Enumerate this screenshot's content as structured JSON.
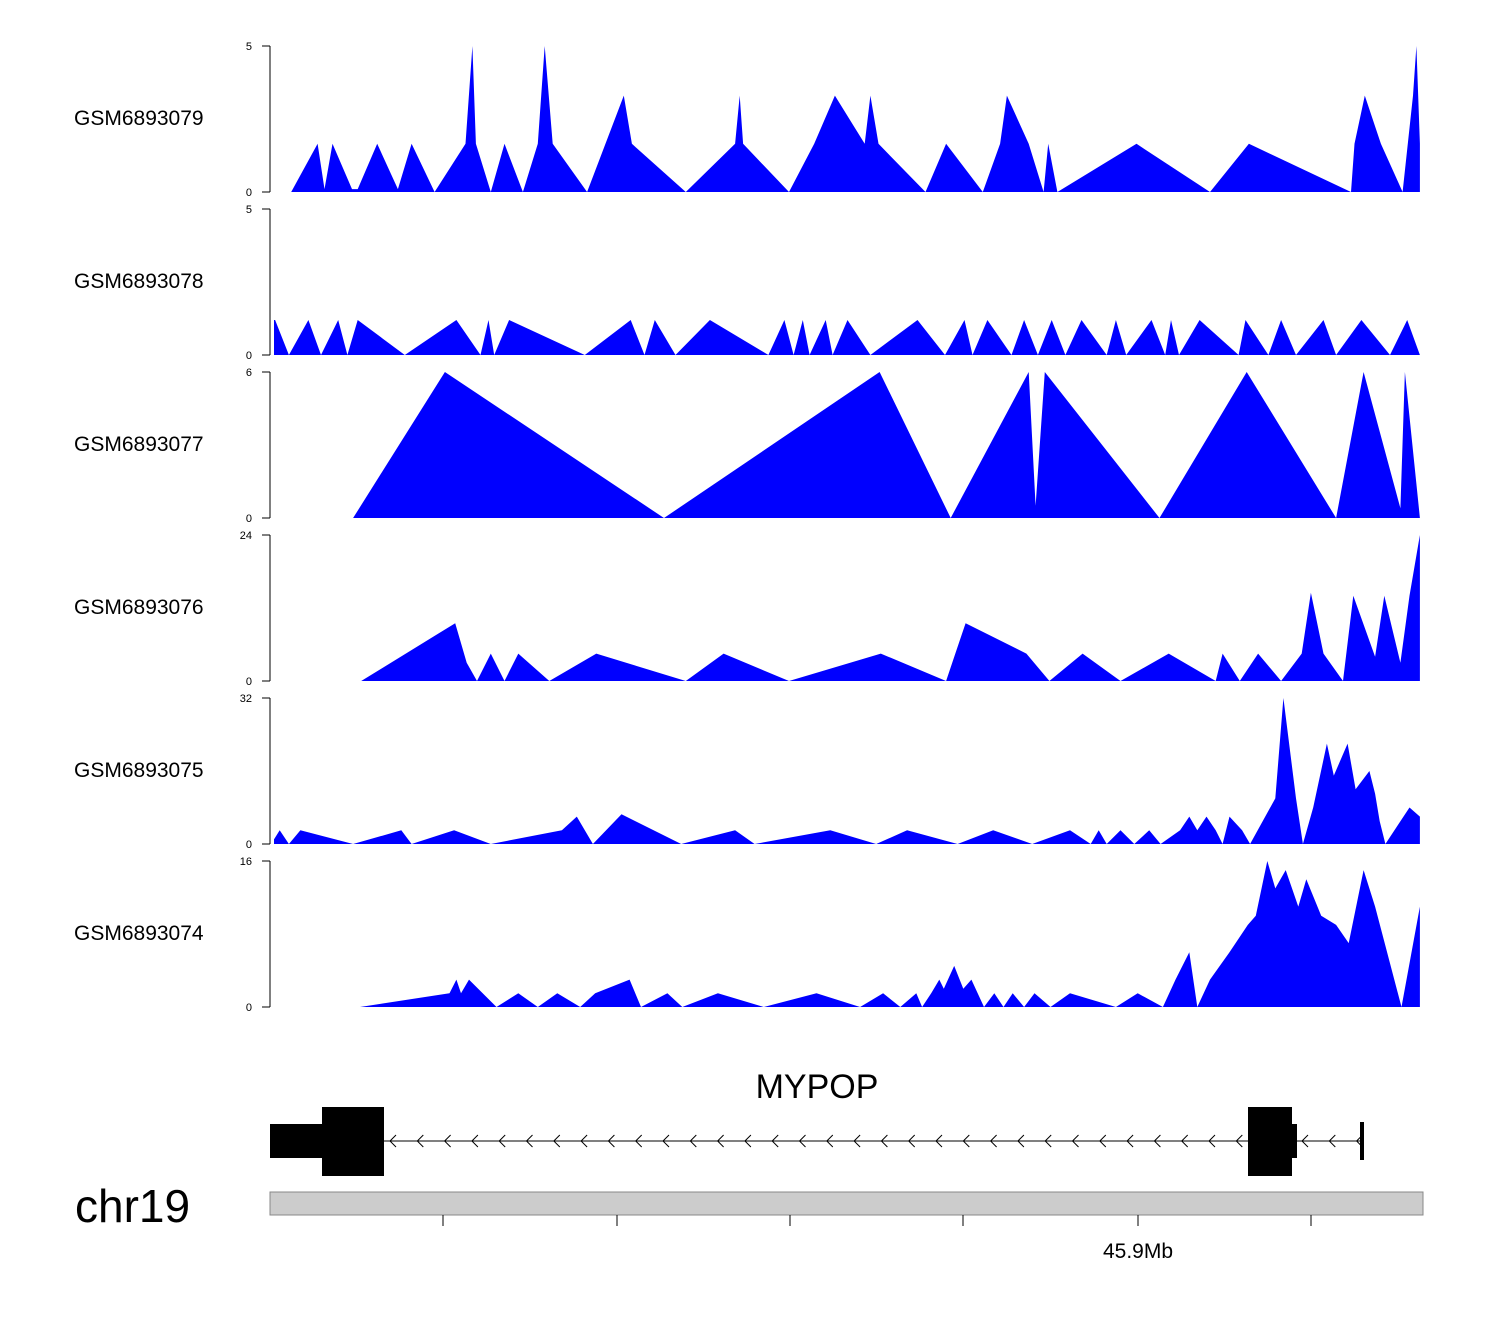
{
  "chart_data": {
    "type": "area",
    "title": "",
    "chromosome": "chr19",
    "genomic_axis": {
      "tick_label": "45.9Mb",
      "x_range": [
        0,
        100
      ]
    },
    "tracks": [
      {
        "name": "GSM6893079",
        "ylim": [
          0,
          5
        ],
        "tick_labels": [
          "5",
          "0"
        ],
        "color": "#0000ff",
        "x": [
          1.5,
          3.8,
          4.4,
          5.1,
          6.8,
          7.3,
          9.0,
          10.8,
          12.0,
          14.0,
          16.7,
          17.3,
          17.6,
          18.9,
          20.1,
          21.7,
          23.0,
          23.6,
          24.3,
          27.3,
          30.5,
          31.2,
          35.9,
          40.2,
          40.6,
          40.9,
          44.9,
          47.1,
          48.9,
          51.5,
          52.0,
          52.7,
          56.8,
          58.6,
          61.8,
          63.3,
          63.9,
          65.8,
          67.1,
          67.5,
          68.3,
          75.2,
          81.6,
          85.0,
          93.9,
          94.2,
          95.1,
          96.5,
          98.4,
          99.3,
          99.6,
          99.9
        ],
        "values": [
          0,
          1.65,
          0.1,
          1.65,
          0.1,
          0.1,
          1.65,
          0.1,
          1.65,
          0,
          1.65,
          5,
          1.65,
          0,
          1.65,
          0,
          1.65,
          5,
          1.65,
          0,
          3.3,
          1.65,
          0,
          1.65,
          3.3,
          1.65,
          0,
          1.65,
          3.3,
          1.65,
          3.3,
          1.65,
          0,
          1.65,
          0,
          1.65,
          3.3,
          1.65,
          0,
          1.65,
          0,
          1.65,
          0,
          1.65,
          0,
          1.65,
          3.3,
          1.65,
          0,
          3.3,
          5,
          1.65
        ]
      },
      {
        "name": "GSM6893078",
        "ylim": [
          0,
          5
        ],
        "tick_labels": [
          "5",
          "0"
        ],
        "color": "#0000ff",
        "x": [
          0,
          0.1,
          1.3,
          3.0,
          4.1,
          5.6,
          6.4,
          7.3,
          11.4,
          15.9,
          18.0,
          18.7,
          19.2,
          20.5,
          27.1,
          31.1,
          32.3,
          33.2,
          35.0,
          38.0,
          43.1,
          44.5,
          45.3,
          46.1,
          46.7,
          48.1,
          48.7,
          50.0,
          52.0,
          56.1,
          58.5,
          60.2,
          60.9,
          62.2,
          64.3,
          65.4,
          66.6,
          67.8,
          69.0,
          70.4,
          72.6,
          73.4,
          74.3,
          76.5,
          77.7,
          78.2,
          78.9,
          80.7,
          84.1,
          84.7,
          86.7,
          87.8,
          89.1,
          91.5,
          92.6,
          94.8,
          97.3,
          98.8,
          99.9
        ],
        "values": [
          1.2,
          1.2,
          0,
          1.2,
          0,
          1.2,
          0,
          1.2,
          0,
          1.2,
          0,
          1.2,
          0,
          1.2,
          0,
          1.2,
          0,
          1.2,
          0,
          1.2,
          0,
          1.2,
          0,
          1.2,
          0,
          1.2,
          0,
          1.2,
          0,
          1.2,
          0,
          1.2,
          0,
          1.2,
          0,
          1.2,
          0,
          1.2,
          0,
          1.2,
          0,
          1.2,
          0,
          1.2,
          0,
          1.2,
          0,
          1.2,
          0,
          1.2,
          0,
          1.2,
          0,
          1.2,
          0,
          1.2,
          0,
          1.2,
          0
        ]
      },
      {
        "name": "GSM6893077",
        "ylim": [
          0,
          6
        ],
        "tick_labels": [
          "6",
          "0"
        ],
        "color": "#0000ff",
        "x": [
          6.9,
          14.9,
          34.0,
          52.8,
          59.0,
          65.8,
          66.4,
          67.2,
          77.2,
          84.8,
          92.6,
          95.0,
          98.2,
          98.6,
          99.9
        ],
        "values": [
          0,
          6,
          0,
          6,
          0,
          6,
          0.5,
          6,
          0,
          6,
          0,
          6,
          0.4,
          6,
          0
        ]
      },
      {
        "name": "GSM6893076",
        "ylim": [
          0,
          24
        ],
        "tick_labels": [
          "24",
          "0"
        ],
        "color": "#0000ff",
        "x": [
          7.6,
          15.8,
          16.8,
          17.7,
          18.9,
          20.1,
          21.3,
          24.0,
          28.1,
          35.9,
          39.2,
          44.9,
          52.9,
          58.6,
          59.4,
          60.3,
          65.6,
          67.6,
          70.5,
          73.8,
          78.0,
          82.1,
          82.7,
          84.2,
          85.8,
          87.8,
          89.6,
          90.4,
          91.5,
          93.2,
          94.1,
          96.0,
          96.8,
          98.2,
          99.0,
          99.9
        ],
        "values": [
          0,
          9.5,
          3,
          0,
          4.5,
          0,
          4.5,
          0,
          4.5,
          0,
          4.5,
          0,
          4.5,
          0,
          4.5,
          9.5,
          4.5,
          0,
          4.5,
          0,
          4.5,
          0,
          4.5,
          0,
          4.5,
          0,
          4.5,
          14.5,
          4.5,
          0,
          14,
          4,
          14,
          3,
          14,
          24
        ]
      },
      {
        "name": "GSM6893075",
        "ylim": [
          0,
          32
        ],
        "tick_labels": [
          "32",
          "0"
        ],
        "color": "#0000ff",
        "x": [
          0,
          0.5,
          1.3,
          2.3,
          6.9,
          11.1,
          12.0,
          15.7,
          18.9,
          25.1,
          26.4,
          27.1,
          27.8,
          30.3,
          35.5,
          40.2,
          41.9,
          48.5,
          52.5,
          55.2,
          59.6,
          62.7,
          66.1,
          69.4,
          71.2,
          71.9,
          72.6,
          73.8,
          75.0,
          76.3,
          77.3,
          79.0,
          79.8,
          80.5,
          81.3,
          82.1,
          82.7,
          83.3,
          84.4,
          85.1,
          87.3,
          88.0,
          89.1,
          89.7,
          90.6,
          91.8,
          92.4,
          93.6,
          94.3,
          95.5,
          96.0,
          96.4,
          96.9,
          99.0,
          99.9
        ],
        "values": [
          1,
          3,
          0,
          3,
          0,
          3,
          0,
          3,
          0,
          3,
          6,
          3,
          0,
          6.5,
          0,
          3,
          0,
          3,
          0,
          3,
          0,
          3,
          0,
          3,
          0,
          3,
          0,
          3,
          0,
          3,
          0,
          3,
          6,
          3,
          6,
          3,
          0,
          6,
          3,
          0,
          10,
          32,
          10,
          0,
          8,
          22,
          15,
          22,
          12,
          16,
          11,
          5,
          0,
          8,
          6
        ]
      },
      {
        "name": "GSM6893074",
        "ylim": [
          0,
          16
        ],
        "tick_labels": [
          "16",
          "0"
        ],
        "color": "#0000ff",
        "x": [
          7.5,
          15.3,
          15.9,
          16.3,
          17.0,
          19.4,
          21.3,
          23.0,
          24.7,
          26.7,
          28.0,
          31.0,
          32.0,
          34.3,
          35.6,
          38.7,
          42.7,
          47.3,
          51.1,
          53.1,
          54.6,
          56.0,
          56.5,
          57.3,
          58.0,
          58.4,
          59.3,
          60.1,
          60.8,
          61.9,
          62.8,
          63.6,
          64.4,
          65.4,
          66.3,
          67.7,
          69.4,
          73.4,
          75.3,
          77.5,
          78.6,
          79.8,
          80.5,
          81.6,
          83.3,
          84.9,
          85.6,
          86.6,
          87.3,
          88.2,
          89.3,
          90.0,
          91.3,
          92.6,
          93.7,
          95.0,
          96.0,
          98.3,
          99.9
        ],
        "values": [
          0,
          1.5,
          3,
          1.5,
          3,
          0,
          1.5,
          0,
          1.5,
          0,
          1.5,
          3,
          0,
          1.5,
          0,
          1.5,
          0,
          1.5,
          0,
          1.5,
          0,
          1.5,
          0,
          1.5,
          3,
          2,
          4.5,
          2,
          3,
          0,
          1.5,
          0,
          1.5,
          0,
          1.5,
          0,
          1.5,
          0,
          1.5,
          0,
          3,
          6,
          0,
          3,
          6,
          9,
          10,
          16,
          13,
          15,
          11,
          14,
          10,
          9,
          7,
          15,
          11,
          0,
          11
        ]
      }
    ],
    "gene": {
      "name": "MYPOP",
      "strand": "-"
    }
  }
}
